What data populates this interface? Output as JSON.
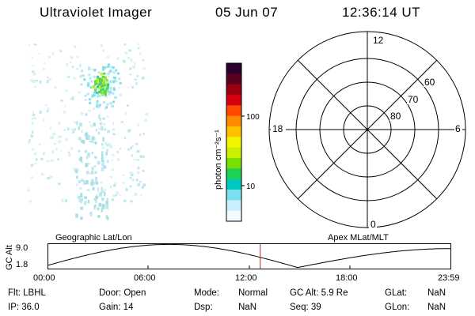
{
  "header": {
    "instrument": "Ultraviolet Imager",
    "date": "05 Jun 07",
    "time": "12:36:14 UT"
  },
  "colorbar": {
    "label": "photon cm⁻²s⁻¹",
    "ticks": [
      "100",
      "10"
    ],
    "scale": "log",
    "colors": [
      "#2a0030",
      "#5a0020",
      "#9a0010",
      "#d40010",
      "#ff4a00",
      "#ff8a00",
      "#ffc000",
      "#f4f400",
      "#c8f000",
      "#78e000",
      "#20d050",
      "#00c8c0",
      "#78e0f0",
      "#c8f0ff",
      "#f4fbff"
    ]
  },
  "polar_plot": {
    "mlt_labels": {
      "top": "12",
      "left": "18",
      "right": "6",
      "bottom": "0"
    },
    "lat_labels": [
      "60",
      "70",
      "80"
    ]
  },
  "timeline": {
    "y_axis_label": "GC Alt",
    "y_max": "9.0",
    "y_min": "1.8",
    "left_title": "Geographic Lat/Lon",
    "right_title": "Apex MLat/MLT",
    "x_ticks": [
      "00:00",
      "06:00",
      "12:00",
      "18:00",
      "23:59"
    ],
    "current_time_fraction": 0.527
  },
  "info": {
    "filter": "Flt: LBHL",
    "ip": "IP: 36.0",
    "door": "Door: Open",
    "gain": "Gain: 14",
    "mode_label": "Mode:",
    "mode_value": "Normal",
    "dsp_label": "Dsp:",
    "dsp_value": "NaN",
    "gc_alt": "GC Alt: 5.9 Re",
    "seq": "Seq: 39",
    "glat_label": "GLat:",
    "glat_value": "NaN",
    "glon_label": "GLon:",
    "glon_value": "NaN"
  }
}
